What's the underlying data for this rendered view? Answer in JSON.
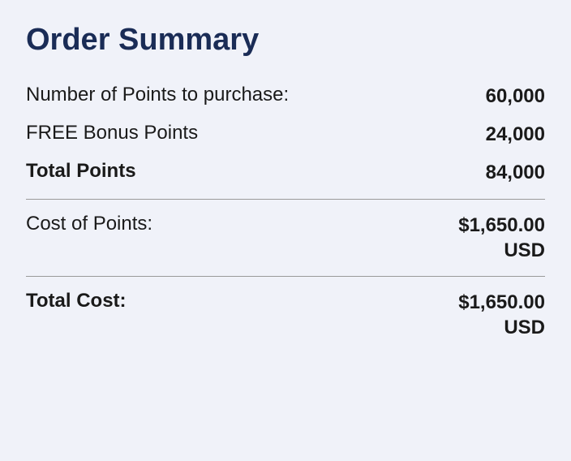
{
  "summary": {
    "title": "Order Summary",
    "rows": {
      "points_purchase": {
        "label": "Number of Points to purchase:",
        "value": "60,000"
      },
      "bonus_points": {
        "label": "FREE Bonus Points",
        "value": "24,000"
      },
      "total_points": {
        "label": "Total Points",
        "value": "84,000"
      },
      "cost_of_points": {
        "label": "Cost of Points:",
        "value": "$1,650.00\nUSD"
      },
      "total_cost": {
        "label": "Total Cost:",
        "value": "$1,650.00\nUSD"
      }
    }
  },
  "colors": {
    "background": "#f0f2f9",
    "title": "#1a2c56",
    "text": "#1a1a1a",
    "divider": "#9a9a9a"
  }
}
